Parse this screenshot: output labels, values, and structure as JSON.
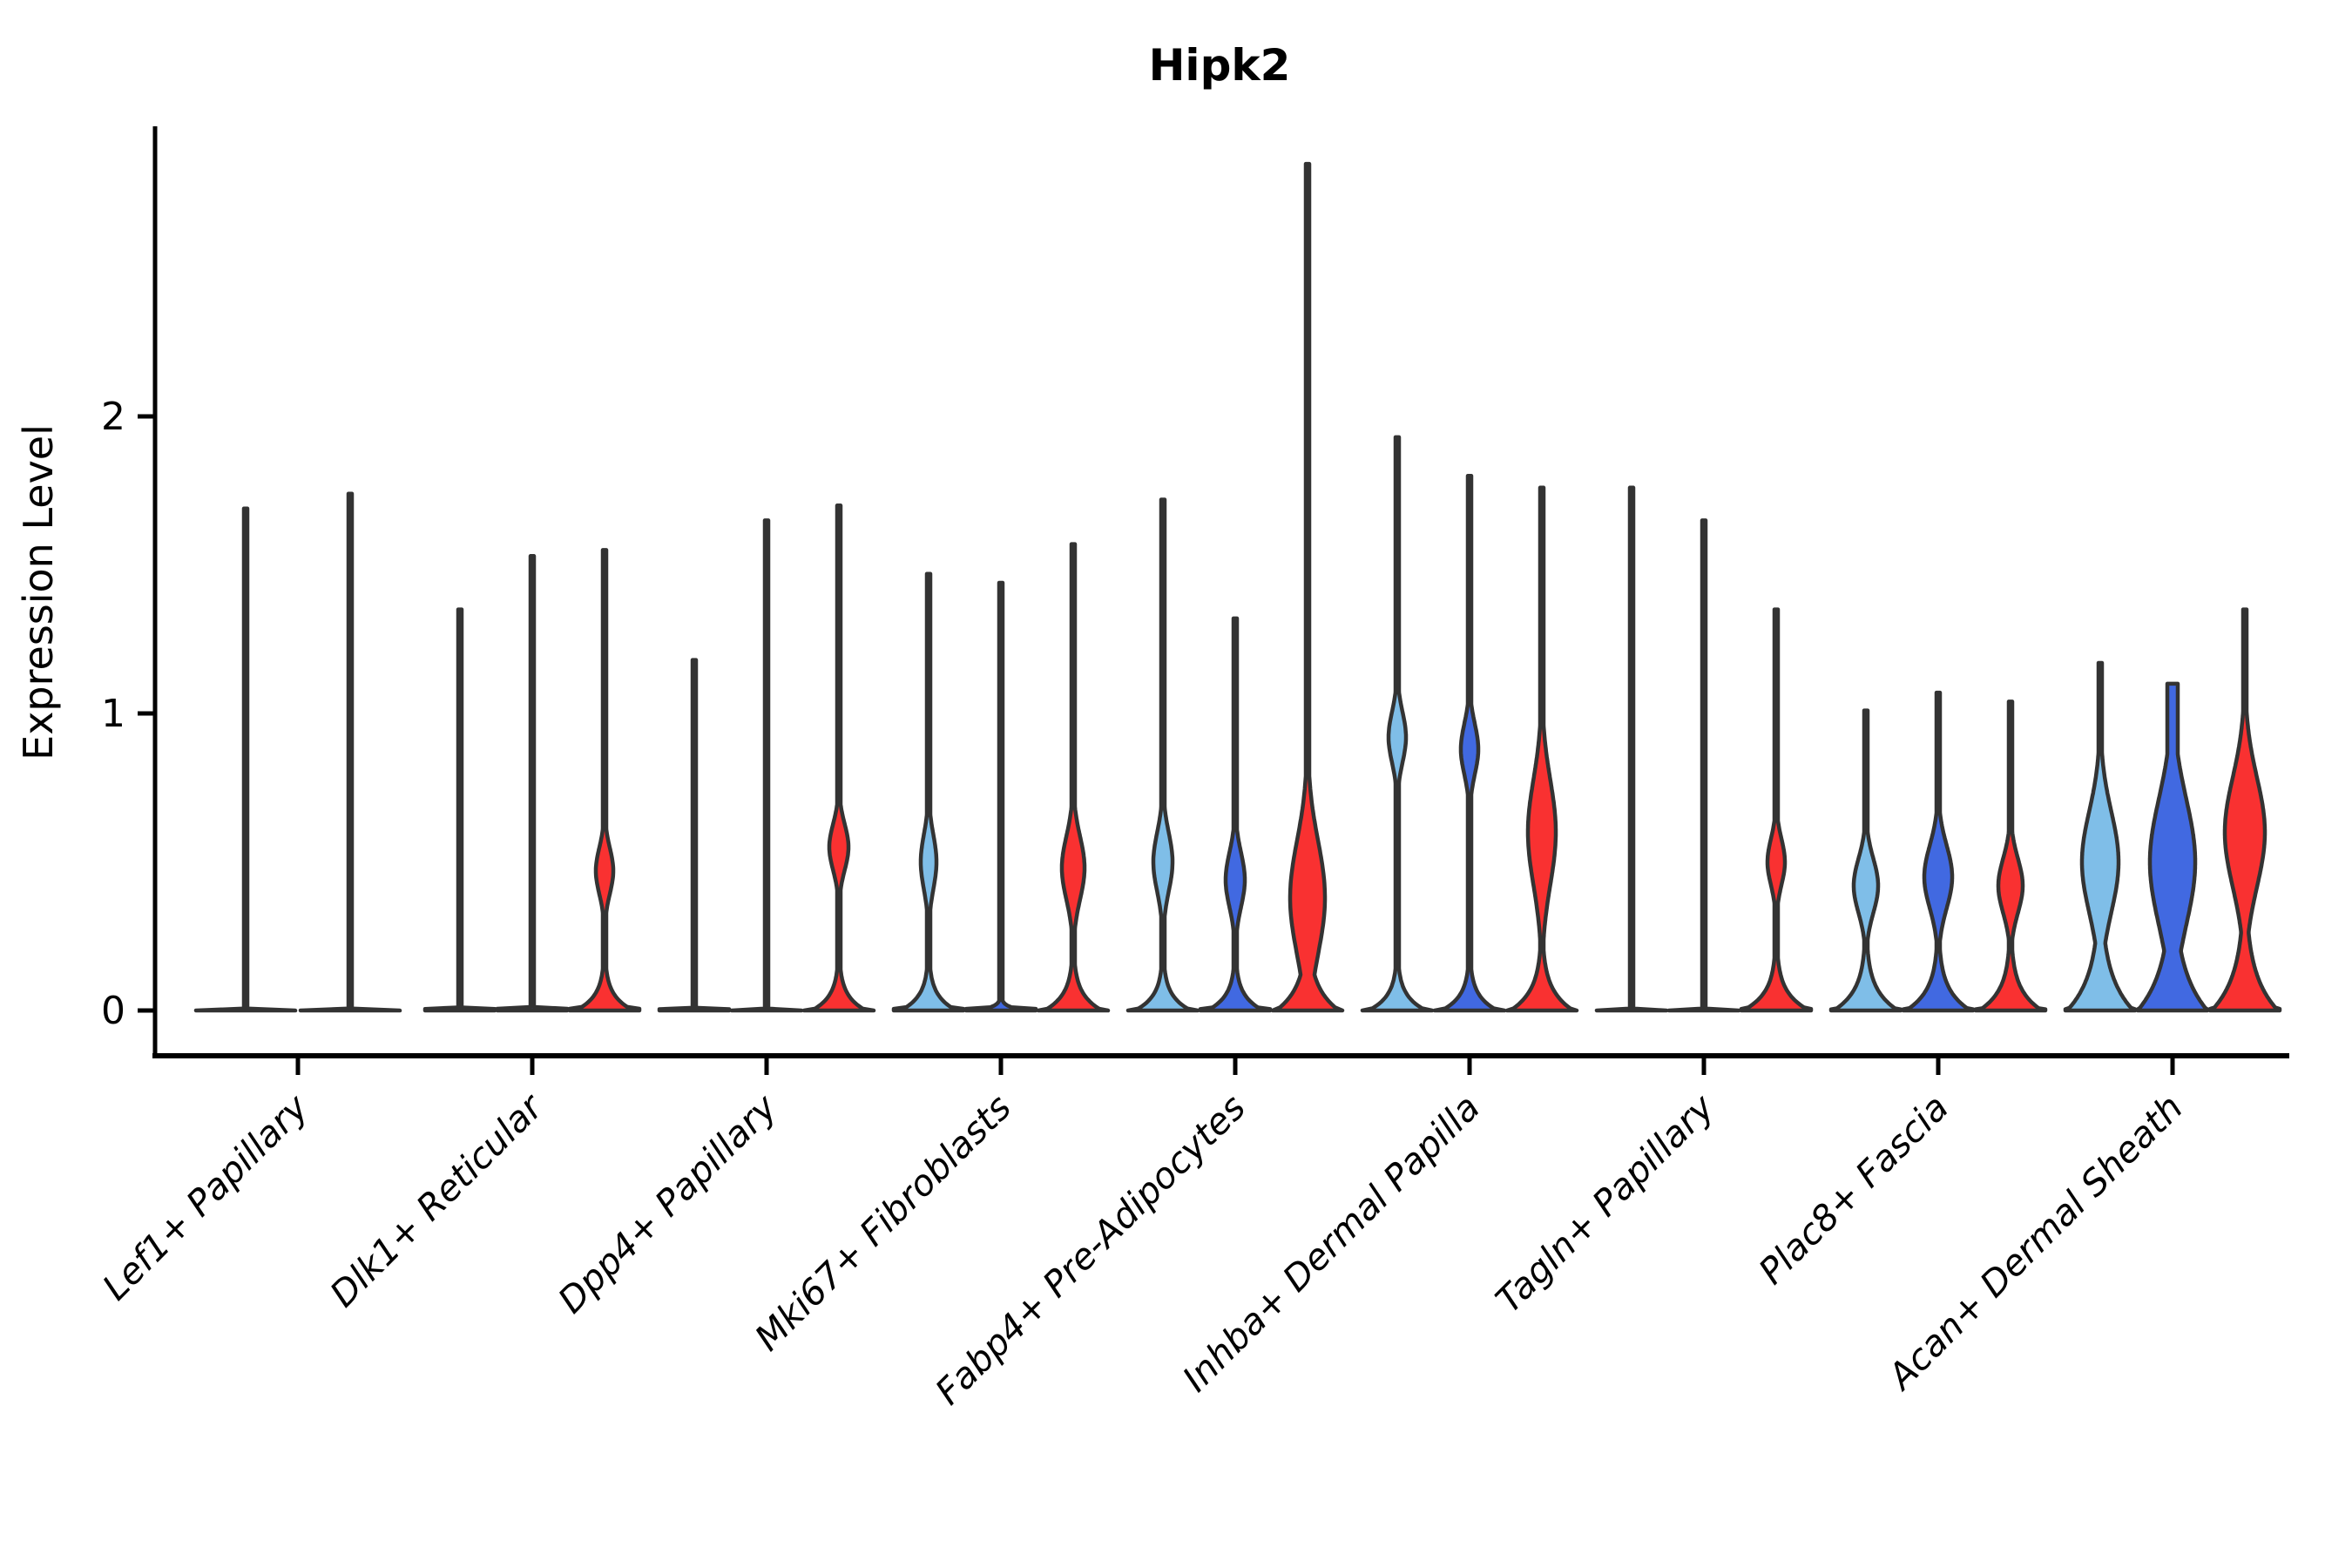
{
  "figure": {
    "title": "Hipk2",
    "y_axis_label": "Expression Level"
  },
  "palette": {
    "light_blue": "#7FBEE8",
    "dark_blue": "#4169E1",
    "red": "#F93131",
    "violin_outline": "#333333",
    "axis_color": "#000000",
    "background": "#ffffff"
  },
  "chart_data": {
    "type": "violin",
    "title": "Hipk2",
    "xlabel": "",
    "ylabel": "Expression Level",
    "yticks": [
      0,
      1,
      2
    ],
    "ylim": [
      -0.07,
      3.0
    ],
    "grid": false,
    "legend": "none",
    "x_tick_rotation_deg": 45,
    "split_order": [
      "light_blue",
      "dark_blue",
      "red"
    ],
    "categories": [
      "Lef1+ Papillary",
      "Dlk1+ Reticular",
      "Dpp4+ Papillary",
      "Mki67+ Fibroblasts",
      "Fabp4+ Pre-Adipocytes",
      "Inhba+ Dermal Papilla",
      "Tagln+ Papillary",
      "Plac8+ Fascia",
      "Acan+ Dermal Sheath"
    ],
    "groups": [
      {
        "category": "Lef1+ Papillary",
        "violins": [
          {
            "split": "light_blue",
            "max_expression": 1.69,
            "shape": "flat_spike",
            "offset": -60,
            "flat_halfwidth": 57,
            "spike_halfwidth": 2
          },
          {
            "split": "dark_blue",
            "max_expression": 1.74,
            "shape": "flat_spike",
            "offset": 60,
            "flat_halfwidth": 57,
            "spike_halfwidth": 2
          }
        ]
      },
      {
        "category": "Dlk1+ Reticular",
        "violins": [
          {
            "split": "light_blue",
            "max_expression": 1.35,
            "shape": "flat_spike",
            "offset": -83,
            "flat_halfwidth": 40,
            "spike_halfwidth": 2
          },
          {
            "split": "dark_blue",
            "max_expression": 1.53,
            "shape": "flat_spike",
            "offset": 0,
            "flat_halfwidth": 40,
            "spike_halfwidth": 2
          },
          {
            "split": "red",
            "max_expression": 1.55,
            "shape": "base_lens_spike",
            "offset": 83,
            "flat_halfwidth": 40,
            "spike_halfwidth": 2,
            "base": {
              "halfwidth": 33,
              "decay": 0.05
            },
            "lens": {
              "center": 0.47,
              "sd": 0.11,
              "halfwidth": 10
            }
          }
        ]
      },
      {
        "category": "Dpp4+ Papillary",
        "violins": [
          {
            "split": "light_blue",
            "max_expression": 1.18,
            "shape": "flat_spike",
            "offset": -83,
            "flat_halfwidth": 40,
            "spike_halfwidth": 2
          },
          {
            "split": "dark_blue",
            "max_expression": 1.65,
            "shape": "flat_spike",
            "offset": 0,
            "flat_halfwidth": 40,
            "spike_halfwidth": 2
          },
          {
            "split": "red",
            "max_expression": 1.7,
            "shape": "base_lens_spike",
            "offset": 83,
            "flat_halfwidth": 40,
            "spike_halfwidth": 2,
            "base": {
              "halfwidth": 31,
              "decay": 0.05
            },
            "lens": {
              "center": 0.55,
              "sd": 0.11,
              "halfwidth": 11
            }
          }
        ]
      },
      {
        "category": "Mki67+ Fibroblasts",
        "violins": [
          {
            "split": "light_blue",
            "max_expression": 1.47,
            "shape": "base_lens_spike",
            "offset": -83,
            "flat_halfwidth": 40,
            "spike_halfwidth": 2,
            "base": {
              "halfwidth": 32,
              "decay": 0.05
            },
            "lens": {
              "center": 0.5,
              "sd": 0.13,
              "halfwidth": 9
            }
          },
          {
            "split": "dark_blue",
            "max_expression": 1.44,
            "shape": "flat_spike_small_bump",
            "offset": 0,
            "flat_halfwidth": 40,
            "spike_halfwidth": 2,
            "base": {
              "halfwidth": 30,
              "decay": 0.012
            }
          },
          {
            "split": "red",
            "max_expression": 1.57,
            "shape": "base_lens_spike",
            "offset": 83,
            "flat_halfwidth": 40,
            "spike_halfwidth": 2,
            "base": {
              "halfwidth": 33,
              "decay": 0.055
            },
            "lens": {
              "center": 0.48,
              "sd": 0.15,
              "halfwidth": 13
            }
          }
        ]
      },
      {
        "category": "Fabp4+ Pre-Adipocytes",
        "violins": [
          {
            "split": "light_blue",
            "max_expression": 1.72,
            "shape": "base_lens_spike",
            "offset": -83,
            "flat_halfwidth": 40,
            "spike_halfwidth": 2,
            "base": {
              "halfwidth": 32,
              "decay": 0.05
            },
            "lens": {
              "center": 0.5,
              "sd": 0.14,
              "halfwidth": 11
            }
          },
          {
            "split": "dark_blue",
            "max_expression": 1.32,
            "shape": "base_lens_spike",
            "offset": 0,
            "flat_halfwidth": 40,
            "spike_halfwidth": 2,
            "base": {
              "halfwidth": 32,
              "decay": 0.05
            },
            "lens": {
              "center": 0.44,
              "sd": 0.13,
              "halfwidth": 11
            }
          },
          {
            "split": "red",
            "max_expression": 2.85,
            "shape": "base_lens_spike",
            "offset": 83,
            "flat_halfwidth": 40,
            "spike_halfwidth": 2,
            "base": {
              "halfwidth": 36,
              "decay": 0.08
            },
            "lens": {
              "center": 0.38,
              "sd": 0.27,
              "halfwidth": 20
            }
          }
        ]
      },
      {
        "category": "Inhba+ Dermal Papilla",
        "violins": [
          {
            "split": "light_blue",
            "max_expression": 1.93,
            "shape": "base_lens_spike",
            "offset": -83,
            "flat_halfwidth": 40,
            "spike_halfwidth": 2,
            "base": {
              "halfwidth": 33,
              "decay": 0.05
            },
            "lens": {
              "center": 0.92,
              "sd": 0.12,
              "halfwidth": 10
            }
          },
          {
            "split": "dark_blue",
            "max_expression": 1.8,
            "shape": "base_lens_spike",
            "offset": 0,
            "flat_halfwidth": 40,
            "spike_halfwidth": 2,
            "base": {
              "halfwidth": 32,
              "decay": 0.05
            },
            "lens": {
              "center": 0.88,
              "sd": 0.12,
              "halfwidth": 10
            }
          },
          {
            "split": "red",
            "max_expression": 1.76,
            "shape": "base_lens_spike",
            "offset": 83,
            "flat_halfwidth": 40,
            "spike_halfwidth": 2,
            "base": {
              "halfwidth": 36,
              "decay": 0.07
            },
            "lens": {
              "center": 0.6,
              "sd": 0.25,
              "halfwidth": 16
            }
          }
        ]
      },
      {
        "category": "Tagln+ Papillary",
        "violins": [
          {
            "split": "light_blue",
            "max_expression": 1.76,
            "shape": "flat_spike",
            "offset": -83,
            "flat_halfwidth": 40,
            "spike_halfwidth": 2
          },
          {
            "split": "dark_blue",
            "max_expression": 1.65,
            "shape": "flat_spike",
            "offset": 0,
            "flat_halfwidth": 40,
            "spike_halfwidth": 2
          },
          {
            "split": "red",
            "max_expression": 1.35,
            "shape": "base_lens_spike",
            "offset": 83,
            "flat_halfwidth": 40,
            "spike_halfwidth": 2,
            "base": {
              "halfwidth": 38,
              "decay": 0.06
            },
            "lens": {
              "center": 0.5,
              "sd": 0.11,
              "halfwidth": 10
            }
          }
        ]
      },
      {
        "category": "Plac8+ Fascia",
        "violins": [
          {
            "split": "light_blue",
            "max_expression": 1.01,
            "shape": "base_lens_spike",
            "offset": -83,
            "flat_halfwidth": 40,
            "spike_halfwidth": 2,
            "base": {
              "halfwidth": 37,
              "decay": 0.07
            },
            "lens": {
              "center": 0.42,
              "sd": 0.13,
              "halfwidth": 14
            }
          },
          {
            "split": "dark_blue",
            "max_expression": 1.07,
            "shape": "base_lens_spike",
            "offset": 0,
            "flat_halfwidth": 40,
            "spike_halfwidth": 2,
            "base": {
              "halfwidth": 37,
              "decay": 0.07
            },
            "lens": {
              "center": 0.45,
              "sd": 0.15,
              "halfwidth": 16
            }
          },
          {
            "split": "red",
            "max_expression": 1.04,
            "shape": "base_lens_spike",
            "offset": 83,
            "flat_halfwidth": 40,
            "spike_halfwidth": 2,
            "base": {
              "halfwidth": 36,
              "decay": 0.07
            },
            "lens": {
              "center": 0.42,
              "sd": 0.13,
              "halfwidth": 14
            }
          }
        ]
      },
      {
        "category": "Acan+ Dermal Sheath",
        "violins": [
          {
            "split": "light_blue",
            "max_expression": 1.17,
            "shape": "base_lens_spike",
            "offset": -83,
            "flat_halfwidth": 40,
            "spike_halfwidth": 2,
            "base": {
              "halfwidth": 38,
              "decay": 0.12
            },
            "lens": {
              "center": 0.5,
              "sd": 0.24,
              "halfwidth": 21
            }
          },
          {
            "split": "dark_blue",
            "max_expression": 1.1,
            "shape": "base_lens_spike",
            "offset": 0,
            "flat_halfwidth": 40,
            "spike_halfwidth": 6,
            "base": {
              "halfwidth": 40,
              "decay": 0.14
            },
            "lens": {
              "center": 0.5,
              "sd": 0.3,
              "halfwidth": 26
            }
          },
          {
            "split": "red",
            "max_expression": 1.35,
            "shape": "base_lens_spike",
            "offset": 83,
            "flat_halfwidth": 40,
            "spike_halfwidth": 2,
            "base": {
              "halfwidth": 38,
              "decay": 0.12
            },
            "lens": {
              "center": 0.6,
              "sd": 0.26,
              "halfwidth": 23
            }
          }
        ]
      }
    ]
  }
}
